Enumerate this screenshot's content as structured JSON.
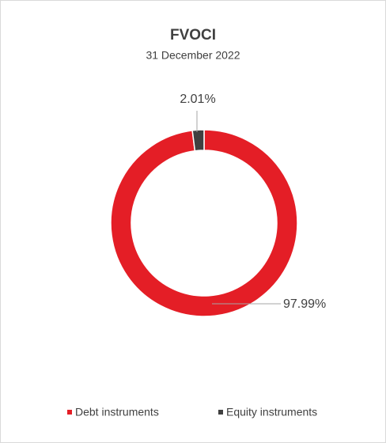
{
  "chart_data": {
    "type": "donut",
    "title": "FVOCI",
    "subtitle": "31 December 2022",
    "categories": [
      "Debt instruments",
      "Equity instruments"
    ],
    "values": [
      97.99,
      2.01
    ],
    "value_labels": [
      "97.99%",
      "2.01%"
    ],
    "colors": [
      "#e41e26",
      "#404040"
    ],
    "legend": "bottom"
  }
}
